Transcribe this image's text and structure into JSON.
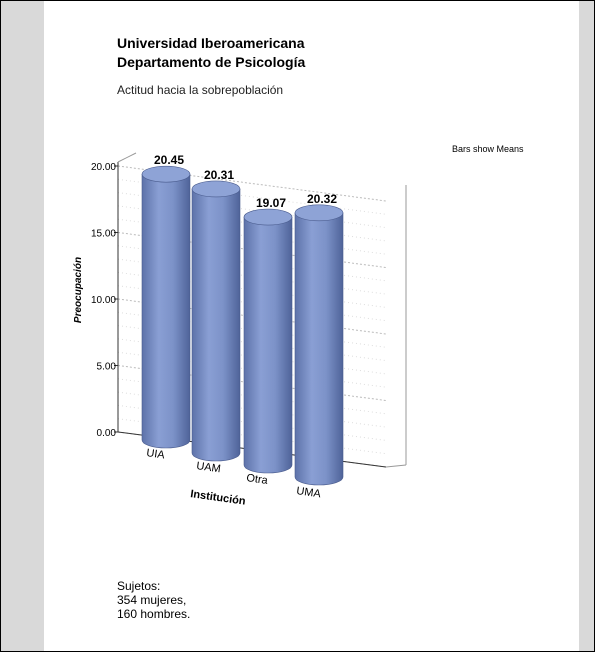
{
  "header": {
    "title_line1": "Universidad Iberoamericana",
    "title_line2": "Departamento de Psicología",
    "subtitle": "Actitud hacia la sobrepoblación"
  },
  "legend_note": "Bars show Means",
  "notes": {
    "line1": "Sujetos:",
    "line2": "354 mujeres,",
    "line3": "160 hombres."
  },
  "colors": {
    "bar": "#7d93c8",
    "bar_dark": "#5a6fa6",
    "bar_top": "#8ea3d6"
  },
  "chart_data": {
    "type": "bar",
    "style": "3d-cylinder",
    "title": "Actitud hacia la sobrepoblación",
    "xlabel": "Institución",
    "ylabel": "Preocupación",
    "categories": [
      "UIA",
      "UAM",
      "Otra",
      "UMA"
    ],
    "values": [
      20.45,
      20.31,
      19.07,
      20.32
    ],
    "value_labels": [
      "20.45",
      "20.31",
      "19.07",
      "20.32"
    ],
    "yticks": [
      "0.00",
      "5.00",
      "10.00",
      "15.00",
      "20.00"
    ],
    "ylim": [
      0,
      20
    ],
    "grid": true
  }
}
